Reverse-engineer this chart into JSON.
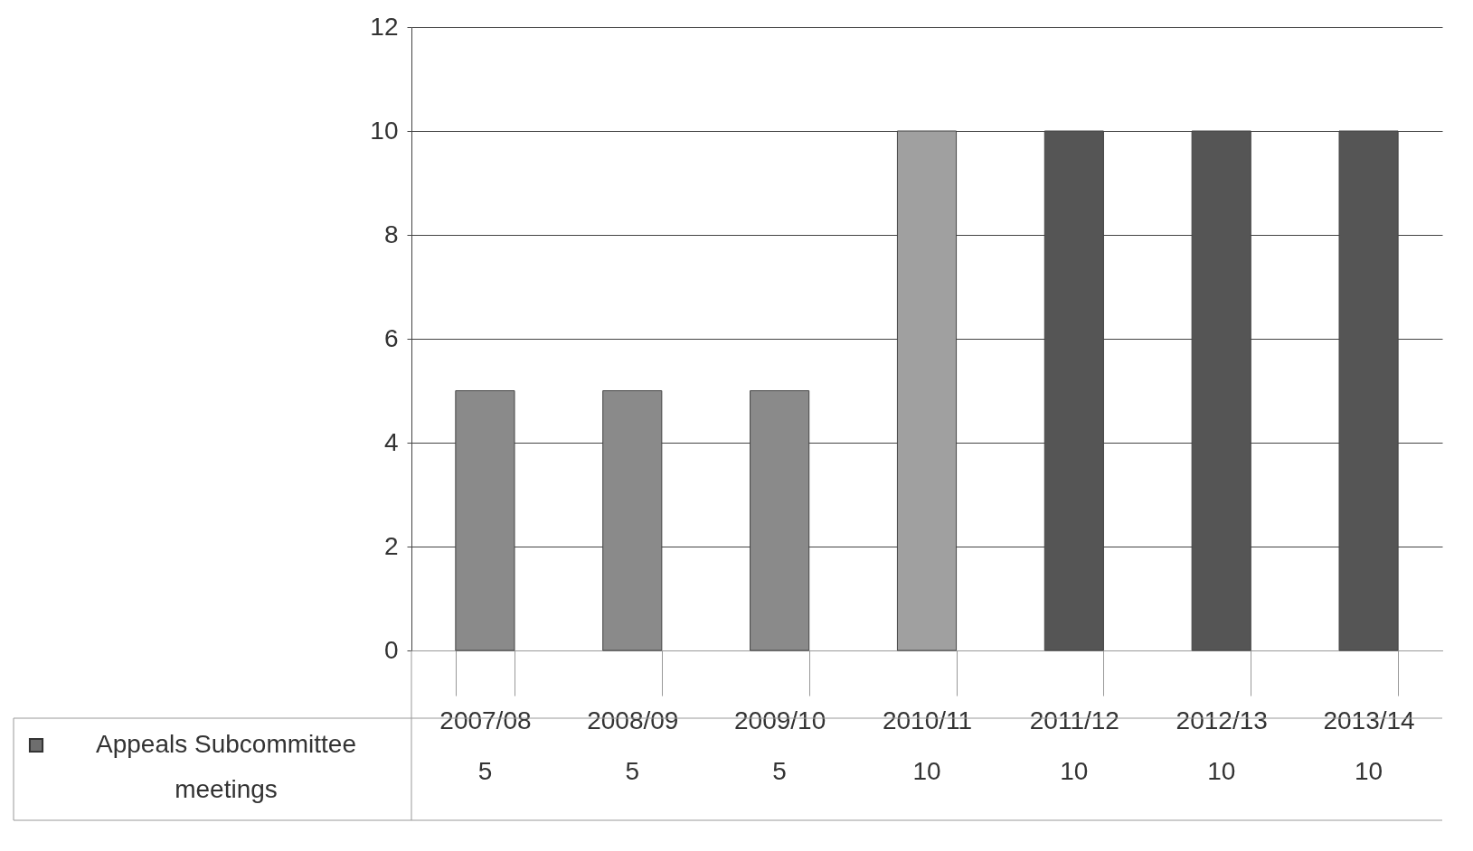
{
  "chart_data": {
    "type": "bar",
    "categories": [
      "2007/08",
      "2008/09",
      "2009/10",
      "2010/11",
      "2011/12",
      "2012/13",
      "2013/14"
    ],
    "series": [
      {
        "name": "Appeals Subcommittee meetings",
        "color": "#6e6e6e",
        "colors": [
          "#8a8a8a",
          "#8a8a8a",
          "#8a8a8a",
          "#a0a0a0",
          "#555555",
          "#555555",
          "#555555"
        ],
        "values": [
          5,
          5,
          5,
          10,
          10,
          10,
          10
        ]
      }
    ],
    "ylim": [
      0,
      12
    ],
    "yticks": [
      0,
      2,
      4,
      6,
      8,
      10,
      12
    ],
    "grid": "y",
    "data_labels": true
  }
}
